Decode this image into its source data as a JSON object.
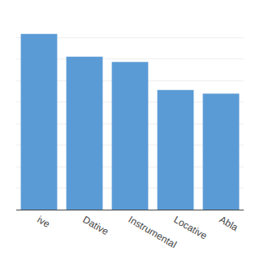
{
  "chart_data": {
    "type": "bar",
    "categories": [
      "ive",
      "Dative",
      "Instrumental",
      "Locative",
      "Abla"
    ],
    "values": [
      100,
      87,
      84,
      68,
      66
    ],
    "color": "#5B9BD5",
    "ylim": [
      0,
      110
    ],
    "yticks": [
      0,
      12.222222222222221,
      24.444444444444443,
      36.666666666666664,
      48.888888888888886,
      61.11111111111111,
      73.33333333333333,
      85.55555555555556,
      97.77777777777777,
      110
    ],
    "grid": true,
    "tick_labels": "x"
  }
}
